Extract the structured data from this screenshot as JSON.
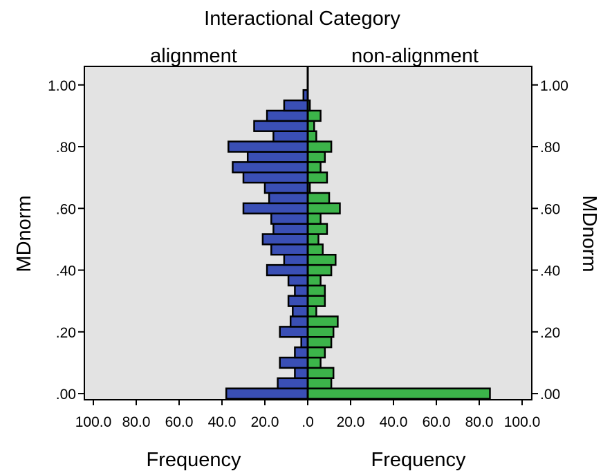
{
  "chart_data": {
    "type": "bar",
    "orientation": "horizontal-back-to-back",
    "title": "Interactional Category",
    "ylabel": "MDnorm",
    "xlabel": "Frequency",
    "ylim": [
      -0.02,
      1.06
    ],
    "y_ticks": [
      ".00",
      ".20",
      ".40",
      ".60",
      ".80",
      "1.00"
    ],
    "y_tick_values": [
      0.0,
      0.2,
      0.4,
      0.6,
      0.8,
      1.0
    ],
    "x_ticks_left": [
      "100.0",
      "80.0",
      "60.0",
      "40.0",
      "20.0",
      ".0"
    ],
    "x_ticks_right": [
      "20.0",
      "40.0",
      "60.0",
      "80.0",
      "100.0"
    ],
    "x_tick_values_left": [
      100,
      80,
      60,
      40,
      20,
      0
    ],
    "x_tick_values_right": [
      20,
      40,
      60,
      80,
      100
    ],
    "xlim": [
      0,
      105
    ],
    "bin_width": 0.0333,
    "bin_centers": [
      0.0,
      0.0333,
      0.0667,
      0.1,
      0.1333,
      0.1667,
      0.2,
      0.2333,
      0.2667,
      0.3,
      0.3333,
      0.3667,
      0.4,
      0.4333,
      0.4667,
      0.5,
      0.5333,
      0.5667,
      0.6,
      0.6333,
      0.6667,
      0.7,
      0.7333,
      0.7667,
      0.8,
      0.8333,
      0.8667,
      0.9,
      0.9333,
      0.9667,
      1.0
    ],
    "grid": false,
    "series": [
      {
        "name": "alignment",
        "color": "#3a4fb5",
        "values": [
          38,
          14,
          6,
          13,
          6,
          3,
          13,
          8,
          7,
          9,
          6,
          9,
          19,
          11,
          17,
          21,
          16,
          17,
          30,
          18,
          20,
          30,
          35,
          28,
          37,
          16,
          25,
          19,
          11,
          2,
          0
        ]
      },
      {
        "name": "non-alignment",
        "color": "#3cb44a",
        "values": [
          85,
          11,
          12,
          6,
          8,
          11,
          12,
          14,
          4,
          8,
          8,
          6,
          11,
          13,
          7,
          5,
          9,
          6,
          15,
          10,
          1,
          9,
          6,
          8,
          11,
          4,
          3,
          6,
          1,
          0,
          0
        ]
      }
    ]
  }
}
